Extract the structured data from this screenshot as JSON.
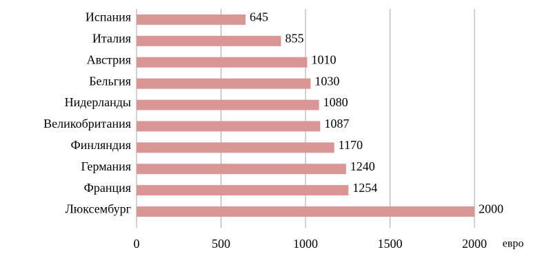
{
  "chart_data": {
    "type": "bar",
    "orientation": "horizontal",
    "categories": [
      "Испания",
      "Италия",
      "Австрия",
      "Бельгия",
      "Нидерланды",
      "Великобритания",
      "Финляндия",
      "Германия",
      "Франция",
      "Люксембург"
    ],
    "values": [
      645,
      855,
      1010,
      1030,
      1080,
      1087,
      1170,
      1240,
      1254,
      2000
    ],
    "color": "#d99694",
    "xlim": [
      0,
      2000
    ],
    "xticks": [
      0,
      500,
      1000,
      1500,
      2000
    ],
    "x_label": "евро",
    "grid": true
  }
}
